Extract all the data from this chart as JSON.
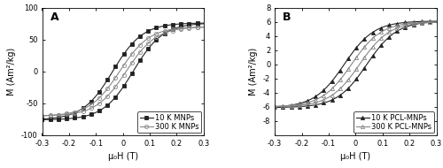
{
  "panel_A": {
    "label": "A",
    "ylabel": "M (Am²/kg)",
    "xlabel": "μ₀H (T)",
    "xlim": [
      -0.3,
      0.3
    ],
    "ylim": [
      -100,
      100
    ],
    "yticks": [
      -100,
      -50,
      0,
      50,
      100
    ],
    "xticks": [
      -0.3,
      -0.2,
      -0.1,
      0.0,
      0.1,
      0.2,
      0.3
    ],
    "series_10K": {
      "label": "10 K MNPs",
      "marker": "s",
      "markersize": 3.0,
      "color": "#222222",
      "fillstyle": "full",
      "linewidth": 0.8,
      "coercivity": 0.038,
      "saturation": 76,
      "steepness": 9.0,
      "sat_shift": 0.01
    },
    "series_300K": {
      "label": "300 K MNPs",
      "marker": "o",
      "markersize": 3.0,
      "color": "#888888",
      "fillstyle": "none",
      "linewidth": 0.8,
      "coercivity": 0.012,
      "saturation": 70,
      "steepness": 9.0,
      "sat_shift": 0.01
    }
  },
  "panel_B": {
    "label": "B",
    "ylabel": "M (Am²/kg)",
    "xlabel": "μ₀H (T)",
    "xlim": [
      -0.3,
      0.3
    ],
    "ylim": [
      -10,
      8
    ],
    "yticks": [
      -8,
      -6,
      -4,
      -2,
      0,
      2,
      4,
      6,
      8
    ],
    "xticks": [
      -0.3,
      -0.2,
      -0.1,
      0.0,
      0.1,
      0.2,
      0.3
    ],
    "series_10K": {
      "label": "10 K PCL-MNPs",
      "marker": "^",
      "markersize": 3.0,
      "color": "#222222",
      "fillstyle": "full",
      "linewidth": 0.8,
      "coercivity": 0.042,
      "saturation": 6.1,
      "steepness": 9.0,
      "sat_shift": 0.01
    },
    "series_300K": {
      "label": "300 K PCL-MNPs",
      "marker": "^",
      "markersize": 3.0,
      "color": "#888888",
      "fillstyle": "none",
      "linewidth": 0.8,
      "coercivity": 0.015,
      "saturation": 6.0,
      "steepness": 9.0,
      "sat_shift": 0.01
    }
  },
  "background_color": "#ffffff",
  "font_size": 7,
  "label_fontsize": 7,
  "tick_fontsize": 6,
  "markevery": 5
}
